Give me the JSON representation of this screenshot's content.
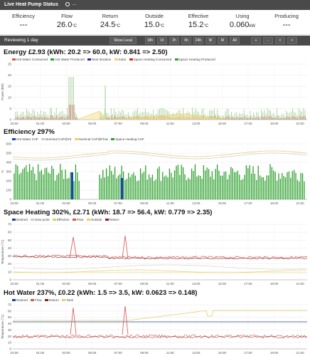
{
  "header": {
    "title": "Live Heat Pump Status",
    "suffix": "…"
  },
  "metrics": [
    {
      "label": "Efficiency",
      "value": "---",
      "unit": ""
    },
    {
      "label": "Flow",
      "value": "26.0",
      "unit": "°C"
    },
    {
      "label": "Return",
      "value": "24.5",
      "unit": "°C"
    },
    {
      "label": "Outside",
      "value": "15.0",
      "unit": "°C"
    },
    {
      "label": "Effective",
      "value": "15.2",
      "unit": "°C"
    },
    {
      "label": "Using",
      "value": "0.060",
      "unit": "kW"
    },
    {
      "label": "Producing",
      "value": "---",
      "unit": ""
    }
  ],
  "toolbar": {
    "reviewing": "Reviewing 1 day",
    "show_local": "Show Local",
    "ranges": [
      "18h",
      "1h",
      "2h",
      "6h",
      "24h",
      "W",
      "M",
      "All"
    ],
    "nav": [
      "+",
      "-",
      "<",
      ">"
    ]
  },
  "sections": [
    {
      "title": "Energy £2.93 (kWh: 20.2 => 60.0, kW: 0.841 => 2.50)",
      "legend": [
        {
          "name": "Hot Water Consumed",
          "color": "#d9534f"
        },
        {
          "name": "Hot Water Produced",
          "color": "#2ca02c"
        },
        {
          "name": "Next Iteration",
          "color": "#2030a0"
        },
        {
          "name": "Solar",
          "color": "#f0d060"
        },
        {
          "name": "Space Heating Consumed",
          "color": "#d62728"
        },
        {
          "name": "Space Heating Produced",
          "color": "#2ca02c"
        }
      ]
    },
    {
      "title": "Efficiency 297%",
      "legend": [
        {
          "name": "Hot Water CoP",
          "color": "#1f3fbf"
        },
        {
          "name": "Nominal CoP@HI",
          "color": "#cccccc"
        },
        {
          "name": "Nominal CoP@Flow",
          "color": "#f2d060"
        },
        {
          "name": "Space Heating CoP",
          "color": "#2ca02c"
        }
      ]
    },
    {
      "title": "Space Heating 302%, £2.71 (kWh: 18.7 => 56.4, kW: 0.779 => 2.35)",
      "legend": [
        {
          "name": "Desired",
          "color": "#2040a0"
        },
        {
          "name": "Dew point",
          "color": "#cccccc"
        },
        {
          "name": "Effective",
          "color": "#e0d060"
        },
        {
          "name": "Flow",
          "color": "#d9534f"
        },
        {
          "name": "Outside",
          "color": "#f2d060"
        },
        {
          "name": "Return",
          "color": "#8b2020"
        }
      ]
    },
    {
      "title": "Hot Water 237%, £0.22 (kWh: 1.5 => 3.5, kW: 0.0623 => 0.148)",
      "legend": [
        {
          "name": "Desired",
          "color": "#2040a0"
        },
        {
          "name": "Flow",
          "color": "#d9534f"
        },
        {
          "name": "Return",
          "color": "#8b2020"
        },
        {
          "name": "Tank",
          "color": "#e0d060"
        }
      ]
    }
  ],
  "charts": {
    "x_ticks": [
      "23:00",
      "01:00",
      "03:00",
      "05:00",
      "07:00",
      "09:00",
      "11:00",
      "13:00",
      "15:00",
      "17:00",
      "19:00",
      "21:00"
    ],
    "energy": {
      "ylabel": "Power (kW)",
      "y_ticks": [
        "25",
        "20",
        "15",
        "10",
        "5",
        "0"
      ]
    },
    "efficiency": {
      "ylabel": "%",
      "y_ticks": [
        "600",
        "500",
        "400",
        "300",
        "200",
        "100",
        "0"
      ]
    },
    "space": {
      "ylabel": "Temperature (°C)",
      "y_ticks": [
        "70",
        "60",
        "50",
        "40",
        "30",
        "20",
        "10",
        "0"
      ]
    },
    "hotwater": {
      "ylabel": "Temperature (°C)",
      "y_ticks": [
        "70",
        "60",
        "50",
        "40",
        "30",
        "20",
        "10",
        "0"
      ]
    }
  }
}
